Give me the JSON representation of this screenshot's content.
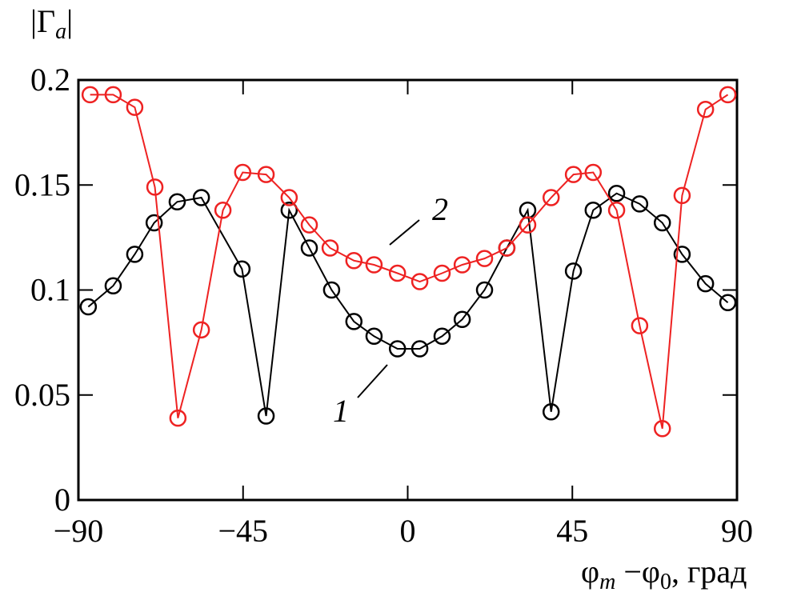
{
  "chart_data": {
    "type": "line",
    "title": "",
    "ylabel": {
      "main": "|Γ",
      "sub": "a",
      "close": "|"
    },
    "xlabel": {
      "phi1": "φ",
      "sub1": "m",
      "minus": " −φ",
      "sub2": "0",
      "unit": ", град"
    },
    "xlim": [
      -90,
      90
    ],
    "ylim": [
      0,
      0.2
    ],
    "xticks": [
      -90,
      -45,
      0,
      45,
      90
    ],
    "xtick_labels": [
      "−90",
      "−45",
      "0",
      "45",
      "90"
    ],
    "yticks": [
      0,
      0.05,
      0.1,
      0.15,
      0.2
    ],
    "ytick_labels": [
      "0",
      "0.05",
      "0.1",
      "0.15",
      "0.2"
    ],
    "grid": false,
    "series": [
      {
        "name": "1",
        "color": "#000000",
        "marker": "circle",
        "x": [
          -87.3,
          -80.5,
          -74.6,
          -69.3,
          -63.0,
          -56.4,
          -45.3,
          -38.7,
          -32.4,
          -26.9,
          -20.8,
          -14.7,
          -9.2,
          -2.8,
          3.3,
          9.4,
          14.9,
          21.0,
          27.1,
          32.8,
          39.2,
          45.3,
          50.7,
          57.1,
          63.4,
          69.6,
          75.0,
          81.4,
          87.5
        ],
        "y": [
          0.092,
          0.102,
          0.117,
          0.132,
          0.142,
          0.144,
          0.11,
          0.04,
          0.138,
          0.12,
          0.1,
          0.085,
          0.078,
          0.072,
          0.072,
          0.078,
          0.086,
          0.1,
          0.12,
          0.138,
          0.042,
          0.109,
          0.138,
          0.146,
          0.141,
          0.132,
          0.117,
          0.103,
          0.094
        ]
      },
      {
        "name": "2",
        "color": "#ee2222",
        "marker": "circle",
        "x": [
          -86.8,
          -80.5,
          -74.6,
          -69.1,
          -62.8,
          -56.4,
          -50.5,
          -45.1,
          -38.7,
          -32.4,
          -26.9,
          -21.2,
          -14.7,
          -9.2,
          -2.8,
          3.3,
          9.4,
          14.9,
          21.0,
          27.1,
          32.8,
          39.2,
          45.3,
          50.7,
          57.1,
          63.4,
          69.6,
          75.0,
          81.4,
          87.5
        ],
        "y": [
          0.193,
          0.193,
          0.187,
          0.149,
          0.039,
          0.081,
          0.138,
          0.156,
          0.155,
          0.144,
          0.131,
          0.12,
          0.114,
          0.112,
          0.108,
          0.104,
          0.108,
          0.112,
          0.115,
          0.12,
          0.131,
          0.144,
          0.155,
          0.156,
          0.138,
          0.083,
          0.034,
          0.145,
          0.186,
          0.193
        ]
      }
    ],
    "annotations": [
      {
        "text": "1",
        "series": "1"
      },
      {
        "text": "2",
        "series": "2"
      }
    ]
  }
}
